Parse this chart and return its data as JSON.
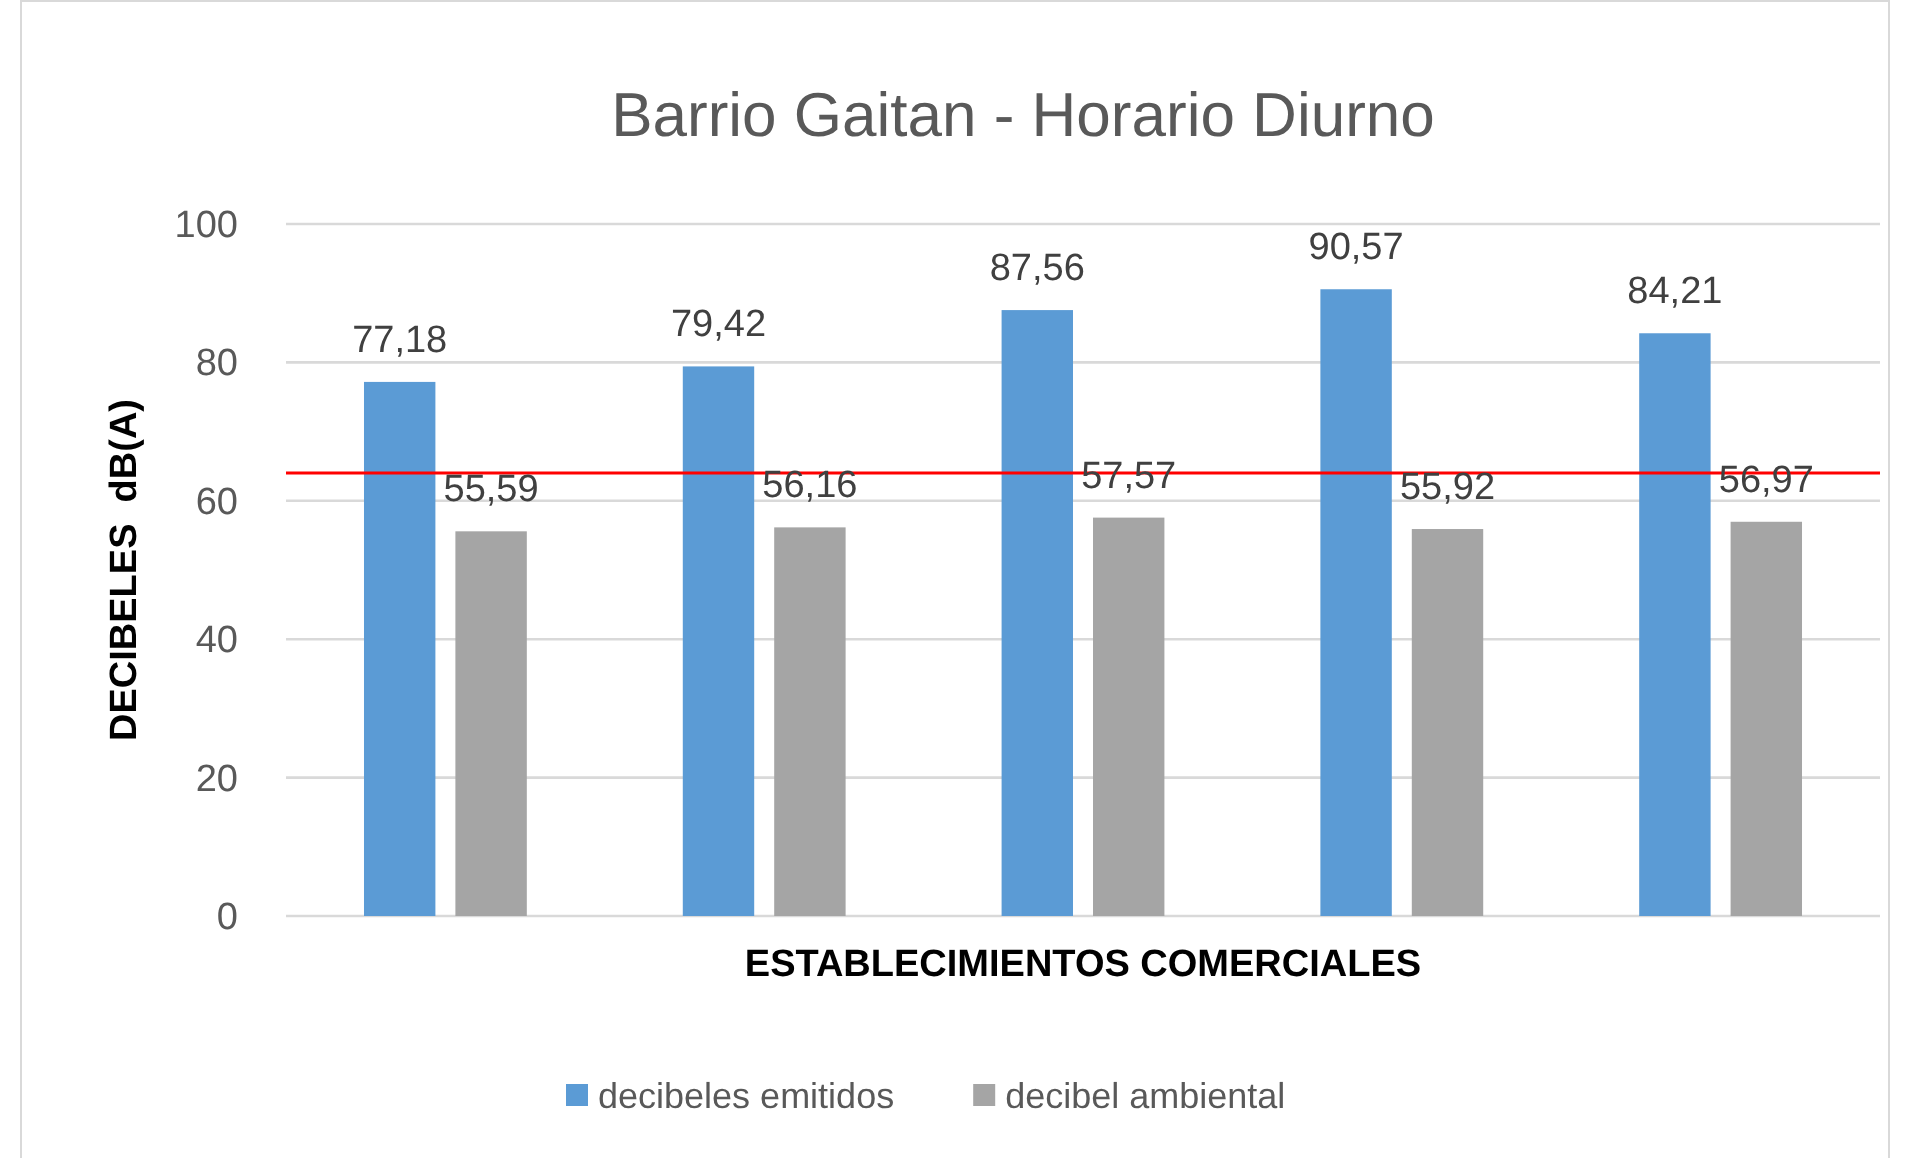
{
  "chart_data": {
    "type": "bar",
    "title": "Barrio Gaitan - Horario Diurno",
    "xlabel": "ESTABLECIMIENTOS COMERCIALES",
    "ylabel": "DECIBELES  dB(A)",
    "categories": [
      null,
      null,
      null,
      null,
      null
    ],
    "series": [
      {
        "name": "decibeles emitidos",
        "color": "#5b9bd5",
        "values": [
          77.18,
          79.42,
          87.56,
          90.57,
          84.21
        ],
        "value_labels": [
          "77,18",
          "79,42",
          "87,56",
          "90,57",
          "84,21"
        ]
      },
      {
        "name": "decibel ambiental",
        "color": "#a5a5a5",
        "values": [
          55.59,
          56.16,
          57.57,
          55.92,
          56.97
        ],
        "value_labels": [
          "55,59",
          "56,16",
          "57,57",
          "55,92",
          "56,97"
        ]
      }
    ],
    "ylim": [
      0,
      100
    ],
    "yticks": [
      0,
      20,
      40,
      60,
      80,
      100
    ],
    "grid": "y",
    "legend": "bottom",
    "ref_lines": [
      {
        "axis": "y",
        "value": 64,
        "color": "#ff0000"
      }
    ]
  }
}
